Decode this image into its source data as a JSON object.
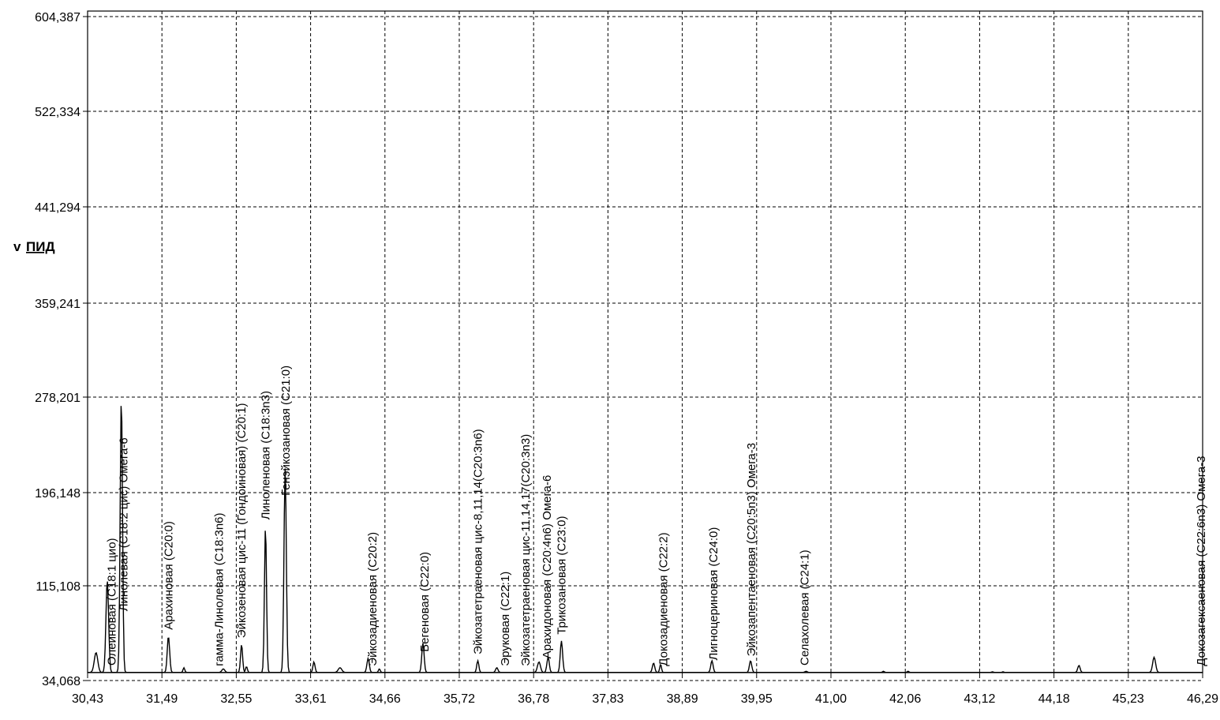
{
  "chart_data": {
    "type": "line",
    "title": "",
    "xlabel": "",
    "ylabel": "ПИД",
    "ylabel_prefix": "v",
    "grid": true,
    "grid_style": "dashed",
    "xlim": [
      30.43,
      46.29
    ],
    "ylim": [
      34.068,
      604.387
    ],
    "x_ticks": [
      "30,43",
      "31,49",
      "32,55",
      "33,61",
      "34,66",
      "35,72",
      "36,78",
      "37,83",
      "38,89",
      "39,95",
      "41,00",
      "42,06",
      "43,12",
      "44,18",
      "45,23",
      "46,29"
    ],
    "y_ticks": [
      "34,068",
      "115,108",
      "196,148",
      "278,201",
      "359,241",
      "441,294",
      "522,334",
      "604,387"
    ],
    "baseline": 41,
    "series": [
      {
        "peaks": [
          {
            "x": 30.55,
            "h": 58,
            "w": 0.06
          },
          {
            "x": 30.71,
            "h": 120,
            "w": 0.045
          },
          {
            "x": 30.91,
            "h": 278,
            "w": 0.04
          },
          {
            "x": 31.58,
            "h": 72,
            "w": 0.04
          },
          {
            "x": 31.8,
            "h": 45,
            "w": 0.03
          },
          {
            "x": 32.36,
            "h": 44,
            "w": 0.05
          },
          {
            "x": 32.62,
            "h": 65,
            "w": 0.035
          },
          {
            "x": 32.69,
            "h": 46,
            "w": 0.03
          },
          {
            "x": 32.96,
            "h": 167,
            "w": 0.035
          },
          {
            "x": 33.24,
            "h": 217,
            "w": 0.04
          },
          {
            "x": 33.65,
            "h": 50,
            "w": 0.035
          },
          {
            "x": 34.02,
            "h": 45,
            "w": 0.06
          },
          {
            "x": 34.42,
            "h": 53,
            "w": 0.04
          },
          {
            "x": 34.58,
            "h": 44,
            "w": 0.03
          },
          {
            "x": 35.2,
            "h": 66,
            "w": 0.04
          },
          {
            "x": 35.98,
            "h": 51,
            "w": 0.035
          },
          {
            "x": 36.25,
            "h": 45,
            "w": 0.04
          },
          {
            "x": 36.85,
            "h": 50,
            "w": 0.05
          },
          {
            "x": 36.98,
            "h": 54,
            "w": 0.04
          },
          {
            "x": 37.17,
            "h": 68,
            "w": 0.04
          },
          {
            "x": 38.48,
            "h": 49,
            "w": 0.04
          },
          {
            "x": 38.58,
            "h": 48,
            "w": 0.03
          },
          {
            "x": 39.31,
            "h": 51,
            "w": 0.04
          },
          {
            "x": 39.86,
            "h": 51,
            "w": 0.04
          },
          {
            "x": 40.65,
            "h": 42,
            "w": 0.04
          },
          {
            "x": 41.75,
            "h": 42,
            "w": 0.03
          },
          {
            "x": 42.1,
            "h": 42,
            "w": 0.03
          },
          {
            "x": 43.3,
            "h": 41.5,
            "w": 0.03
          },
          {
            "x": 43.45,
            "h": 41.5,
            "w": 0.03
          },
          {
            "x": 44.53,
            "h": 47,
            "w": 0.04
          },
          {
            "x": 45.6,
            "h": 54,
            "w": 0.05
          }
        ]
      }
    ],
    "annotations": [
      {
        "x": 30.77,
        "text": "Олеиновая (С18:1 цио)"
      },
      {
        "x": 30.94,
        "text": "Линолевая (С18:2 цис) Омега-6"
      },
      {
        "x": 31.58,
        "text": "Арахиновая (С20:0)"
      },
      {
        "x": 32.3,
        "text": "гамма-Линолевая (С18:3n6)"
      },
      {
        "x": 32.62,
        "text": "Эйкозеновая цис-11 (Гондоиновая) (С20:1)"
      },
      {
        "x": 32.96,
        "text": "Линоленовая (С18:3n3)"
      },
      {
        "x": 33.25,
        "text": "Генэйкозановая (С21:0)"
      },
      {
        "x": 34.48,
        "text": "Эйкозадиеновая (С20:2)"
      },
      {
        "x": 35.22,
        "text": "Бегеновая (С22:0)"
      },
      {
        "x": 35.98,
        "text": "Эйкозатетраеновая цис-8,11,14(С20:3n6)"
      },
      {
        "x": 36.37,
        "text": "Эруковая (С22:1)"
      },
      {
        "x": 36.66,
        "text": "Эйкозатетраеновая цис-11,14,17(С20:3n3)"
      },
      {
        "x": 36.96,
        "text": "Арахидоновая (С20:4n6) Омега-6"
      },
      {
        "x": 37.17,
        "text": "Трикозановая (С23:0)"
      },
      {
        "x": 38.62,
        "text": "Докозадиеновая (С22:2)"
      },
      {
        "x": 39.33,
        "text": "Лигноцериновая (С24:0)"
      },
      {
        "x": 39.87,
        "text": "Эйкозапентаеновая (С20:5n3) Омега-3"
      },
      {
        "x": 40.63,
        "text": "Селахолевая (С24:1)"
      },
      {
        "x": 46.27,
        "text": "Докозагексаеновая (С22:6n3) Омега-3"
      }
    ]
  }
}
